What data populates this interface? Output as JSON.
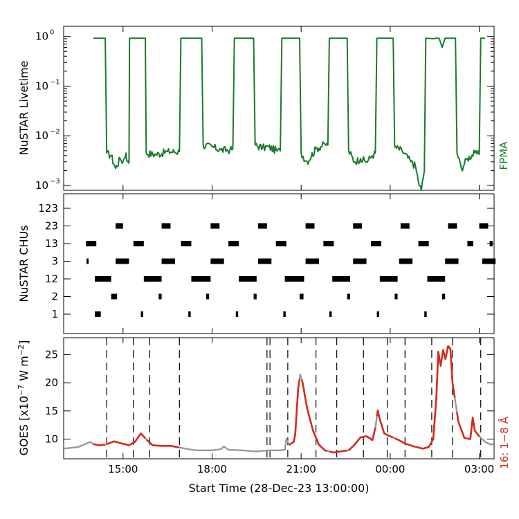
{
  "chart_data": [
    {
      "type": "line",
      "panel": "livetime",
      "ylabel": "NuSTAR Livetime",
      "right_label": "FPMA",
      "yscale": "log",
      "ylim": [
        0.0008,
        1.6
      ],
      "xlim": [
        13.0,
        27.5
      ],
      "x_unit": "hours since 28-Dec-23 00:00",
      "yticks": [
        {
          "v": 1,
          "label": "10",
          "exp": "0"
        },
        {
          "v": 0.1,
          "label": "10",
          "exp": "−1"
        },
        {
          "v": 0.01,
          "label": "10",
          "exp": "−2"
        },
        {
          "v": 0.001,
          "label": "10",
          "exp": "−3"
        }
      ],
      "colors": {
        "line": "#1a7a2c",
        "right_label": "#1a7a2c"
      },
      "series": [
        {
          "name": "FPMA livetime",
          "points": [
            [
              14.0,
              0.92
            ],
            [
              14.4,
              0.92
            ],
            [
              14.45,
              0.0045
            ],
            [
              14.6,
              0.004
            ],
            [
              14.75,
              0.0022
            ],
            [
              14.9,
              0.0035
            ],
            [
              15.0,
              0.003
            ],
            [
              15.1,
              0.0045
            ],
            [
              15.15,
              0.003
            ],
            [
              15.2,
              0.0028
            ],
            [
              15.22,
              0.92
            ],
            [
              15.75,
              0.92
            ],
            [
              15.78,
              0.0045
            ],
            [
              16.1,
              0.0042
            ],
            [
              16.5,
              0.0048
            ],
            [
              16.9,
              0.0048
            ],
            [
              16.95,
              0.92
            ],
            [
              17.65,
              0.92
            ],
            [
              17.7,
              0.0065
            ],
            [
              18.0,
              0.006
            ],
            [
              18.3,
              0.0052
            ],
            [
              18.6,
              0.0052
            ],
            [
              18.7,
              0.0055
            ],
            [
              18.75,
              0.92
            ],
            [
              19.4,
              0.92
            ],
            [
              19.45,
              0.0065
            ],
            [
              19.7,
              0.0058
            ],
            [
              19.9,
              0.006
            ],
            [
              20.2,
              0.005
            ],
            [
              20.3,
              0.005
            ],
            [
              20.35,
              0.92
            ],
            [
              20.95,
              0.92
            ],
            [
              21.0,
              0.0045
            ],
            [
              21.2,
              0.003
            ],
            [
              21.5,
              0.0055
            ],
            [
              21.8,
              0.0068
            ],
            [
              21.9,
              0.0065
            ],
            [
              21.95,
              0.92
            ],
            [
              22.55,
              0.92
            ],
            [
              22.6,
              0.005
            ],
            [
              22.8,
              0.003
            ],
            [
              23.0,
              0.0035
            ],
            [
              23.2,
              0.003
            ],
            [
              23.4,
              0.004
            ],
            [
              23.5,
              0.0045
            ],
            [
              23.55,
              0.92
            ],
            [
              24.1,
              0.92
            ],
            [
              24.15,
              0.006
            ],
            [
              24.4,
              0.005
            ],
            [
              24.7,
              0.003
            ],
            [
              24.85,
              0.0025
            ],
            [
              24.95,
              0.0012
            ],
            [
              25.05,
              0.0008
            ],
            [
              25.15,
              0.002
            ],
            [
              25.2,
              0.92
            ],
            [
              25.45,
              0.9
            ],
            [
              25.55,
              0.92
            ],
            [
              25.65,
              0.92
            ],
            [
              25.75,
              0.6
            ],
            [
              25.85,
              0.92
            ],
            [
              26.2,
              0.92
            ],
            [
              26.25,
              0.0045
            ],
            [
              26.4,
              0.0022
            ],
            [
              26.6,
              0.0035
            ],
            [
              26.85,
              0.0045
            ],
            [
              27.0,
              0.0042
            ],
            [
              27.05,
              0.92
            ],
            [
              27.2,
              0.92
            ]
          ]
        }
      ]
    },
    {
      "type": "scatter",
      "panel": "chus",
      "ylabel": "NuSTAR CHUs",
      "categories": [
        "1",
        "2",
        "12",
        "3",
        "13",
        "23",
        "123"
      ],
      "xlim": [
        13.0,
        27.5
      ],
      "colors": {
        "mark": "#000000"
      },
      "segments": [
        {
          "cat": "1",
          "ranges": [
            [
              14.05,
              14.25
            ],
            [
              15.6,
              15.68
            ],
            [
              17.2,
              17.28
            ],
            [
              18.8,
              18.88
            ],
            [
              20.4,
              20.48
            ],
            [
              21.95,
              22.03
            ],
            [
              23.55,
              23.63
            ],
            [
              25.15,
              25.23
            ]
          ]
        },
        {
          "cat": "2",
          "ranges": [
            [
              14.6,
              14.8
            ],
            [
              16.2,
              16.3
            ],
            [
              17.8,
              17.9
            ],
            [
              19.4,
              19.5
            ],
            [
              20.95,
              21.08
            ],
            [
              22.55,
              22.65
            ],
            [
              24.15,
              24.25
            ],
            [
              25.75,
              25.85
            ]
          ]
        },
        {
          "cat": "12",
          "ranges": [
            [
              14.05,
              14.6
            ],
            [
              15.7,
              16.3
            ],
            [
              17.3,
              17.95
            ],
            [
              18.9,
              19.5
            ],
            [
              20.45,
              21.1
            ],
            [
              22.05,
              22.65
            ],
            [
              23.65,
              24.25
            ],
            [
              25.25,
              25.85
            ]
          ]
        },
        {
          "cat": "3",
          "ranges": [
            [
              13.77,
              13.83
            ],
            [
              14.75,
              15.2
            ],
            [
              16.3,
              16.75
            ],
            [
              17.95,
              18.4
            ],
            [
              19.55,
              20.0
            ],
            [
              21.15,
              21.6
            ],
            [
              22.75,
              23.2
            ],
            [
              24.3,
              24.75
            ],
            [
              25.85,
              26.3
            ],
            [
              27.1,
              27.55
            ]
          ]
        },
        {
          "cat": "13",
          "ranges": [
            [
              13.75,
              14.1
            ],
            [
              15.35,
              15.7
            ],
            [
              16.95,
              17.3
            ],
            [
              18.55,
              18.9
            ],
            [
              20.15,
              20.5
            ],
            [
              21.75,
              22.1
            ],
            [
              23.35,
              23.7
            ],
            [
              24.95,
              25.3
            ],
            [
              26.6,
              26.8
            ],
            [
              27.35,
              27.45
            ]
          ]
        },
        {
          "cat": "23",
          "ranges": [
            [
              14.75,
              15.0
            ],
            [
              16.3,
              16.6
            ],
            [
              17.95,
              18.25
            ],
            [
              19.55,
              19.85
            ],
            [
              21.15,
              21.45
            ],
            [
              22.75,
              23.05
            ],
            [
              24.35,
              24.65
            ],
            [
              25.95,
              26.25
            ],
            [
              27.0,
              27.3
            ]
          ]
        },
        {
          "cat": "123",
          "ranges": []
        }
      ]
    },
    {
      "type": "line",
      "panel": "goes",
      "ylabel": "GOES [x10",
      "ylabel_exp": "−7",
      "ylabel_rest": " W m",
      "ylabel_exp2": "−2",
      "ylabel_end": "]",
      "right_label": "16: 1−8 Å",
      "xlabel": "Start Time (28-Dec-23 13:00:00)",
      "xlim": [
        13.0,
        27.5
      ],
      "ylim": [
        6.5,
        28.0
      ],
      "yticks": [
        10,
        15,
        20,
        25
      ],
      "xticks": [
        {
          "v": 15,
          "label": "15:00"
        },
        {
          "v": 18,
          "label": "18:00"
        },
        {
          "v": 21,
          "label": "21:00"
        },
        {
          "v": 24,
          "label": "00:00"
        },
        {
          "v": 27,
          "label": "03:00"
        }
      ],
      "colors": {
        "flux": "#999999",
        "highlight": "#d62a1e",
        "right_label": "#d62a1e",
        "dashes": "#000000"
      },
      "series": [
        {
          "name": "GOES 1-8 A flux",
          "points": [
            [
              13.0,
              8.3
            ],
            [
              13.5,
              8.6
            ],
            [
              13.9,
              9.5
            ],
            [
              14.0,
              9.1
            ],
            [
              14.2,
              8.9
            ],
            [
              14.4,
              9.0
            ],
            [
              14.7,
              9.6
            ],
            [
              14.9,
              9.3
            ],
            [
              15.2,
              8.9
            ],
            [
              15.4,
              9.5
            ],
            [
              15.6,
              11.0
            ],
            [
              15.85,
              9.6
            ],
            [
              16.0,
              8.9
            ],
            [
              16.3,
              8.8
            ],
            [
              16.6,
              8.8
            ],
            [
              16.9,
              8.5
            ],
            [
              17.2,
              8.2
            ],
            [
              17.5,
              8.0
            ],
            [
              18.0,
              8.0
            ],
            [
              18.3,
              8.2
            ],
            [
              18.4,
              8.7
            ],
            [
              18.55,
              8.1
            ],
            [
              19.0,
              8.0
            ],
            [
              19.5,
              7.8
            ],
            [
              19.9,
              8.0
            ],
            [
              20.1,
              8.0
            ],
            [
              20.3,
              8.0
            ],
            [
              20.45,
              8.1
            ],
            [
              20.5,
              10.0
            ],
            [
              20.6,
              9.0
            ],
            [
              20.75,
              9.5
            ],
            [
              20.8,
              10.8
            ],
            [
              20.9,
              19.0
            ],
            [
              20.97,
              21.5
            ],
            [
              21.05,
              20.0
            ],
            [
              21.2,
              15.5
            ],
            [
              21.4,
              11.5
            ],
            [
              21.6,
              9.0
            ],
            [
              21.8,
              8.0
            ],
            [
              22.1,
              7.6
            ],
            [
              22.3,
              7.8
            ],
            [
              22.6,
              8.0
            ],
            [
              22.8,
              9.0
            ],
            [
              23.0,
              10.3
            ],
            [
              23.2,
              10.5
            ],
            [
              23.3,
              10.2
            ],
            [
              23.4,
              9.8
            ],
            [
              23.5,
              12.0
            ],
            [
              23.58,
              15.1
            ],
            [
              23.65,
              13.5
            ],
            [
              23.8,
              11.0
            ],
            [
              24.0,
              10.5
            ],
            [
              24.3,
              9.8
            ],
            [
              24.5,
              9.2
            ],
            [
              24.8,
              8.7
            ],
            [
              25.1,
              8.3
            ],
            [
              25.3,
              8.6
            ],
            [
              25.45,
              10.0
            ],
            [
              25.55,
              17.0
            ],
            [
              25.62,
              25.5
            ],
            [
              25.7,
              23.0
            ],
            [
              25.78,
              25.8
            ],
            [
              25.86,
              24.2
            ],
            [
              25.95,
              26.5
            ],
            [
              26.03,
              26.0
            ],
            [
              26.1,
              20.0
            ],
            [
              26.3,
              13.0
            ],
            [
              26.5,
              10.2
            ],
            [
              26.7,
              10.0
            ],
            [
              26.78,
              13.8
            ],
            [
              26.85,
              11.5
            ],
            [
              27.0,
              10.5
            ],
            [
              27.2,
              9.5
            ],
            [
              27.4,
              9.0
            ],
            [
              27.5,
              9.2
            ]
          ]
        }
      ],
      "highlight_ranges": [
        [
          14.0,
          14.4
        ],
        [
          14.45,
          15.75
        ],
        [
          15.78,
          16.9
        ],
        [
          20.6,
          20.95
        ],
        [
          21.0,
          21.9
        ],
        [
          21.95,
          22.55
        ],
        [
          22.6,
          23.5
        ],
        [
          23.55,
          24.1
        ],
        [
          24.15,
          25.2
        ],
        [
          25.2,
          26.2
        ],
        [
          26.25,
          27.0
        ]
      ],
      "dashed_lines": [
        14.45,
        15.35,
        15.9,
        16.9,
        19.85,
        19.95,
        20.55,
        21.5,
        22.2,
        23.1,
        23.9,
        24.5,
        25.4,
        26.1,
        27.05
      ]
    }
  ]
}
